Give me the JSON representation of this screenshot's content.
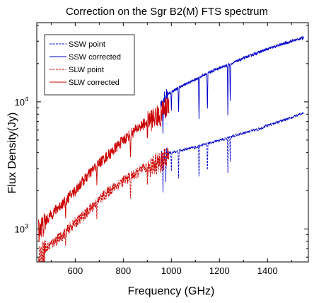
{
  "chart_data": {
    "type": "line",
    "title": "Correction on the Sgr B2(M) FTS spectrum",
    "xlabel": "Frequency (GHz)",
    "ylabel": "Flux Density(Jy)",
    "xlim": [
      440,
      1570
    ],
    "ylim": [
      550,
      42000
    ],
    "yscale": "log",
    "x_ticks": [
      600,
      800,
      1000,
      1200,
      1400
    ],
    "x_tick_labels": [
      "600",
      "800",
      "1000",
      "1200",
      "1400"
    ],
    "y_ticks": [
      1000,
      10000
    ],
    "y_tick_labels": [
      {
        "base": "10",
        "exp": "3"
      },
      {
        "base": "10",
        "exp": "4"
      }
    ],
    "legend_position": "top-left",
    "grid": false,
    "series": [
      {
        "name": "SSW point",
        "color": "#0000cc",
        "style": "dashed",
        "x": [
          958,
          980,
          1000,
          1050,
          1100,
          1150,
          1200,
          1250,
          1300,
          1350,
          1400,
          1450,
          1500,
          1550
        ],
        "y": [
          3700,
          3900,
          4000,
          4200,
          4400,
          4700,
          5000,
          5300,
          5700,
          6000,
          6500,
          7000,
          7500,
          8200
        ],
        "dips": [
          [
            965,
            1800
          ],
          [
            977,
            2300
          ],
          [
            1000,
            2700
          ],
          [
            1030,
            2500
          ],
          [
            1115,
            2300
          ],
          [
            1150,
            2700
          ],
          [
            1235,
            2600
          ],
          [
            1245,
            3300
          ]
        ]
      },
      {
        "name": "SSW corrected",
        "color": "#0000cc",
        "style": "solid",
        "x": [
          955,
          980,
          1000,
          1050,
          1100,
          1150,
          1200,
          1250,
          1300,
          1350,
          1400,
          1450,
          1500,
          1550
        ],
        "y": [
          10000,
          11300,
          12000,
          13500,
          15000,
          16800,
          18500,
          20000,
          22000,
          24000,
          26000,
          28000,
          30000,
          32000
        ],
        "dips": [
          [
            965,
            5500
          ],
          [
            977,
            7000
          ],
          [
            1000,
            8500
          ],
          [
            1030,
            7800
          ],
          [
            1115,
            6800
          ],
          [
            1150,
            8000
          ],
          [
            1235,
            7500
          ],
          [
            1245,
            9500
          ]
        ]
      },
      {
        "name": "SLW point",
        "color": "#cc0000",
        "style": "dashed",
        "x": [
          447,
          470,
          500,
          550,
          600,
          650,
          700,
          750,
          800,
          850,
          900,
          950,
          975,
          990
        ],
        "y": [
          620,
          680,
          760,
          900,
          1120,
          1350,
          1700,
          2050,
          2400,
          2700,
          3100,
          3400,
          3650,
          3800
        ],
        "dips": [
          [
            560,
            700
          ],
          [
            690,
            1200
          ],
          [
            830,
            1600
          ],
          [
            900,
            2100
          ],
          [
            955,
            2600
          ]
        ]
      },
      {
        "name": "SLW corrected",
        "color": "#cc0000",
        "style": "solid",
        "x": [
          447,
          470,
          500,
          550,
          600,
          650,
          700,
          750,
          800,
          850,
          900,
          950,
          975,
          990
        ],
        "y": [
          1000,
          1100,
          1300,
          1600,
          2000,
          2600,
          3300,
          4000,
          5000,
          6000,
          7000,
          8000,
          9000,
          10000
        ],
        "dips": [
          [
            560,
            1150
          ],
          [
            690,
            2200
          ],
          [
            830,
            3300
          ],
          [
            900,
            5000
          ],
          [
            955,
            6000
          ]
        ]
      }
    ]
  }
}
